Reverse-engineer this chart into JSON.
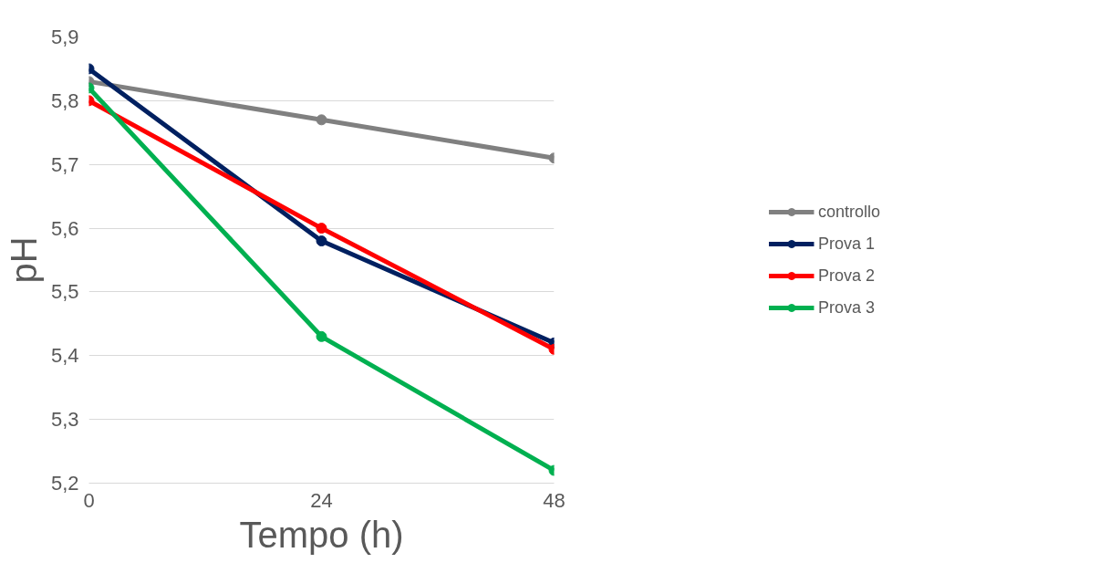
{
  "chart_data": {
    "type": "line",
    "xlabel": "Tempo (h)",
    "ylabel": "pH",
    "x": [
      0,
      24,
      48
    ],
    "xlim": [
      0,
      48
    ],
    "xticks": [
      0,
      24,
      48
    ],
    "ylim": [
      5.2,
      5.9
    ],
    "yticks": [
      {
        "value": 5.2,
        "label": "5,2"
      },
      {
        "value": 5.3,
        "label": "5,3"
      },
      {
        "value": 5.4,
        "label": "5,4"
      },
      {
        "value": 5.5,
        "label": "5,5"
      },
      {
        "value": 5.6,
        "label": "5,6"
      },
      {
        "value": 5.7,
        "label": "5,7"
      },
      {
        "value": 5.8,
        "label": "5,8"
      },
      {
        "value": 5.9,
        "label": "5,9"
      }
    ],
    "grid": "y",
    "legend": "right",
    "marker": "circle",
    "line_style": "solid",
    "series": [
      {
        "name": "controllo",
        "color": "#808080",
        "values": [
          5.83,
          5.77,
          5.71
        ]
      },
      {
        "name": "Prova 1",
        "color": "#002060",
        "values": [
          5.85,
          5.58,
          5.42
        ]
      },
      {
        "name": "Prova 2",
        "color": "#ff0000",
        "values": [
          5.8,
          5.6,
          5.41
        ]
      },
      {
        "name": "Prova 3",
        "color": "#00b050",
        "values": [
          5.82,
          5.43,
          5.22
        ]
      }
    ]
  }
}
